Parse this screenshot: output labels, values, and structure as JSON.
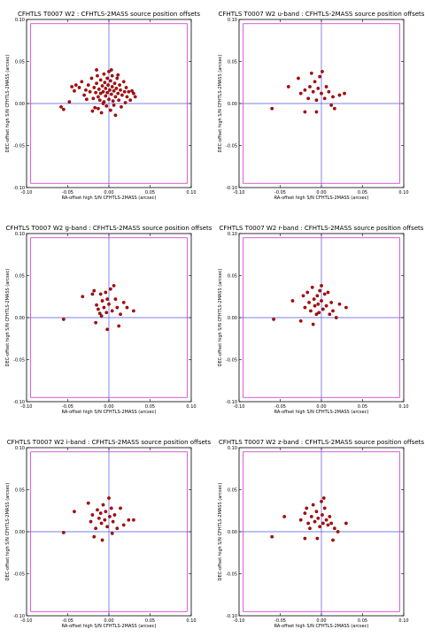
{
  "chart_data": [
    {
      "type": "scatter",
      "title": "CFHTLS T0007 W2 : CFHTLS-2MASS source position offsets",
      "xlabel": "RA-offset high S/N CFHTLS-2MASS (arcsec)",
      "ylabel": "DEC-offset high S/N CFHTLS-2MASS (arcsec)",
      "xlim": [
        -0.1,
        0.1
      ],
      "ylim": [
        -0.1,
        0.1
      ],
      "xticks": [
        "-0.10",
        "-0.05",
        "0.00",
        "0.05",
        "0.10"
      ],
      "yticks": [
        "-0.10",
        "-0.05",
        "0.00",
        "0.05",
        "0.10"
      ],
      "box": [
        -0.095,
        0.095,
        -0.095,
        0.095
      ],
      "colors": {
        "point": "#c00000",
        "edge": "#4a0000",
        "box": "#cc33cc",
        "crosshair": "#5555dd"
      },
      "points": [
        [
          -0.058,
          -0.004
        ],
        [
          -0.055,
          -0.007
        ],
        [
          -0.048,
          0.002
        ],
        [
          -0.045,
          0.02
        ],
        [
          -0.042,
          0.015
        ],
        [
          -0.04,
          0.022
        ],
        [
          -0.036,
          0.019
        ],
        [
          -0.033,
          0.026
        ],
        [
          -0.03,
          0.01
        ],
        [
          -0.028,
          0.016
        ],
        [
          -0.025,
          0.022
        ],
        [
          -0.023,
          0.014
        ],
        [
          -0.021,
          0.03
        ],
        [
          -0.019,
          0.006
        ],
        [
          -0.018,
          0.019
        ],
        [
          -0.017,
          -0.005
        ],
        [
          -0.016,
          0.013
        ],
        [
          -0.015,
          0.024
        ],
        [
          -0.014,
          0.033
        ],
        [
          -0.013,
          0.008
        ],
        [
          -0.012,
          0.017
        ],
        [
          -0.011,
          0.004
        ],
        [
          -0.01,
          0.028
        ],
        [
          -0.01,
          0.012
        ],
        [
          -0.009,
          -0.011
        ],
        [
          -0.008,
          0.021
        ],
        [
          -0.007,
          0.014
        ],
        [
          -0.006,
          0.035
        ],
        [
          -0.006,
          0.002
        ],
        [
          -0.005,
          0.025
        ],
        [
          -0.004,
          0.009
        ],
        [
          -0.004,
          0.018
        ],
        [
          -0.003,
          -0.003
        ],
        [
          -0.002,
          0.03
        ],
        [
          -0.002,
          0.013
        ],
        [
          -0.001,
          0.022
        ],
        [
          0.0,
          0.038
        ],
        [
          0.0,
          0.005
        ],
        [
          0.001,
          0.016
        ],
        [
          0.002,
          0.027
        ],
        [
          0.002,
          -0.008
        ],
        [
          0.003,
          0.011
        ],
        [
          0.004,
          0.02
        ],
        [
          0.004,
          0.033
        ],
        [
          0.005,
          0.003
        ],
        [
          0.006,
          0.015
        ],
        [
          0.007,
          0.024
        ],
        [
          0.008,
          0.008
        ],
        [
          0.008,
          -0.014
        ],
        [
          0.009,
          0.018
        ],
        [
          0.01,
          0.03
        ],
        [
          0.011,
          0.012
        ],
        [
          0.012,
          0.004
        ],
        [
          0.013,
          0.022
        ],
        [
          0.014,
          0.016
        ],
        [
          0.015,
          -0.004
        ],
        [
          0.016,
          0.01
        ],
        [
          0.018,
          0.026
        ],
        [
          0.019,
          0.014
        ],
        [
          0.02,
          0.001
        ],
        [
          0.021,
          0.019
        ],
        [
          0.022,
          0.008
        ],
        [
          0.024,
          0.014
        ],
        [
          0.026,
          0.004
        ],
        [
          0.028,
          0.015
        ],
        [
          0.03,
          0.012
        ],
        [
          0.032,
          0.008
        ],
        [
          -0.02,
          -0.009
        ],
        [
          -0.013,
          -0.006
        ],
        [
          0.003,
          0.04
        ],
        [
          -0.007,
          0.0
        ],
        [
          0.011,
          0.034
        ],
        [
          -0.027,
          0.005
        ],
        [
          0.006,
          -0.002
        ],
        [
          -0.015,
          0.04
        ]
      ]
    },
    {
      "type": "scatter",
      "title": "CFHTLS T0007 W2 u-band : CFHTLS-2MASS source position offsets",
      "xlabel": "RA-offset high S/N CFHTLS-2MASS (arcsec)",
      "ylabel": "DEC-offset high S/N CFHTLS-2MASS (arcsec)",
      "xlim": [
        -0.1,
        0.1
      ],
      "ylim": [
        -0.1,
        0.1
      ],
      "xticks": [
        "-0.10",
        "-0.05",
        "0.00",
        "0.05",
        "0.10"
      ],
      "yticks": [
        "-0.10",
        "-0.05",
        "0.00",
        "0.05",
        "0.10"
      ],
      "box": [
        -0.095,
        0.095,
        -0.095,
        0.095
      ],
      "colors": {
        "point": "#c00000",
        "edge": "#4a0000",
        "box": "#cc33cc",
        "crosshair": "#5555dd"
      },
      "points": [
        [
          -0.06,
          -0.006
        ],
        [
          -0.04,
          0.02
        ],
        [
          -0.025,
          0.012
        ],
        [
          -0.02,
          0.016
        ],
        [
          -0.016,
          0.006
        ],
        [
          -0.014,
          0.02
        ],
        [
          -0.012,
          0.036
        ],
        [
          -0.01,
          0.014
        ],
        [
          -0.008,
          0.026
        ],
        [
          -0.006,
          0.004
        ],
        [
          -0.004,
          0.018
        ],
        [
          -0.002,
          0.032
        ],
        [
          0.0,
          0.012
        ],
        [
          0.001,
          0.038
        ],
        [
          0.004,
          0.006
        ],
        [
          0.006,
          0.02
        ],
        [
          0.009,
          0.014
        ],
        [
          0.012,
          -0.002
        ],
        [
          0.014,
          0.008
        ],
        [
          0.016,
          -0.006
        ],
        [
          0.022,
          0.01
        ],
        [
          0.028,
          0.012
        ],
        [
          -0.02,
          -0.01
        ],
        [
          -0.006,
          -0.01
        ],
        [
          -0.028,
          0.03
        ]
      ]
    },
    {
      "type": "scatter",
      "title": "CFHTLS T0007 W2 g-band : CFHTLS-2MASS source position offsets",
      "xlabel": "RA-offset high S/N CFHTLS-2MASS (arcsec)",
      "ylabel": "DEC-offset high S/N CFHTLS-2MASS (arcsec)",
      "xlim": [
        -0.1,
        0.1
      ],
      "ylim": [
        -0.1,
        0.1
      ],
      "xticks": [
        "-0.10",
        "-0.05",
        "0.00",
        "0.05",
        "0.10"
      ],
      "yticks": [
        "-0.10",
        "-0.05",
        "0.00",
        "0.05",
        "0.10"
      ],
      "box": [
        -0.095,
        0.095,
        -0.095,
        0.095
      ],
      "colors": {
        "point": "#c00000",
        "edge": "#4a0000",
        "box": "#cc33cc",
        "crosshair": "#5555dd"
      },
      "points": [
        [
          -0.055,
          -0.002
        ],
        [
          -0.032,
          0.025
        ],
        [
          -0.02,
          0.028
        ],
        [
          -0.018,
          0.032
        ],
        [
          -0.015,
          0.015
        ],
        [
          -0.013,
          0.01
        ],
        [
          -0.011,
          0.005
        ],
        [
          -0.01,
          0.028
        ],
        [
          -0.008,
          0.02
        ],
        [
          -0.006,
          0.012
        ],
        [
          -0.004,
          0.03
        ],
        [
          -0.003,
          0.006
        ],
        [
          -0.002,
          0.022
        ],
        [
          0.0,
          0.016
        ],
        [
          0.002,
          0.034
        ],
        [
          0.004,
          0.008
        ],
        [
          0.006,
          0.038
        ],
        [
          0.008,
          0.022
        ],
        [
          0.01,
          0.012
        ],
        [
          0.014,
          0.004
        ],
        [
          0.018,
          0.018
        ],
        [
          0.022,
          0.012
        ],
        [
          0.03,
          0.008
        ],
        [
          -0.016,
          -0.006
        ],
        [
          -0.002,
          -0.014
        ],
        [
          0.012,
          -0.01
        ],
        [
          -0.009,
          0.002
        ]
      ]
    },
    {
      "type": "scatter",
      "title": "CFHTLS T0007 W2 r-band : CFHTLS-2MASS source position offsets",
      "xlabel": "RA-offset high S/N CFHTLS-2MASS (arcsec)",
      "ylabel": "DEC-offset high S/N CFHTLS-2MASS (arcsec)",
      "xlim": [
        -0.1,
        0.1
      ],
      "ylim": [
        -0.1,
        0.1
      ],
      "xticks": [
        "-0.10",
        "-0.05",
        "0.00",
        "0.05",
        "0.10"
      ],
      "yticks": [
        "-0.10",
        "-0.05",
        "0.00",
        "0.05",
        "0.10"
      ],
      "box": [
        -0.095,
        0.095,
        -0.095,
        0.095
      ],
      "colors": {
        "point": "#c00000",
        "edge": "#4a0000",
        "box": "#cc33cc",
        "crosshair": "#5555dd"
      },
      "points": [
        [
          -0.058,
          -0.002
        ],
        [
          -0.035,
          0.02
        ],
        [
          -0.022,
          0.026
        ],
        [
          -0.02,
          0.012
        ],
        [
          -0.017,
          0.03
        ],
        [
          -0.015,
          0.018
        ],
        [
          -0.013,
          0.008
        ],
        [
          -0.011,
          0.036
        ],
        [
          -0.009,
          0.022
        ],
        [
          -0.008,
          0.014
        ],
        [
          -0.006,
          0.004
        ],
        [
          -0.005,
          0.026
        ],
        [
          -0.004,
          0.016
        ],
        [
          -0.002,
          0.032
        ],
        [
          0.0,
          0.02
        ],
        [
          0.002,
          0.01
        ],
        [
          0.004,
          0.028
        ],
        [
          0.006,
          0.014
        ],
        [
          0.008,
          0.03
        ],
        [
          0.01,
          0.004
        ],
        [
          0.012,
          0.018
        ],
        [
          0.014,
          0.008
        ],
        [
          0.018,
          0.0
        ],
        [
          0.022,
          0.016
        ],
        [
          0.03,
          0.012
        ],
        [
          -0.01,
          -0.008
        ],
        [
          -0.025,
          -0.004
        ],
        [
          0.0,
          0.038
        ],
        [
          -0.003,
          0.006
        ]
      ]
    },
    {
      "type": "scatter",
      "title": "CFHTLS T0007 W2 i-band : CFHTLS-2MASS source position offsets",
      "xlabel": "RA-offset high S/N CFHTLS-2MASS (arcsec)",
      "ylabel": "DEC-offset high S/N CFHTLS-2MASS (arcsec)",
      "xlim": [
        -0.1,
        0.1
      ],
      "ylim": [
        -0.1,
        0.1
      ],
      "xticks": [
        "-0.10",
        "-0.05",
        "0.00",
        "0.05",
        "0.10"
      ],
      "yticks": [
        "-0.10",
        "-0.05",
        "0.00",
        "0.05",
        "0.10"
      ],
      "box": [
        -0.095,
        0.095,
        -0.095,
        0.095
      ],
      "colors": {
        "point": "#c00000",
        "edge": "#4a0000",
        "box": "#cc33cc",
        "crosshair": "#5555dd"
      },
      "points": [
        [
          -0.055,
          -0.001
        ],
        [
          -0.042,
          0.024
        ],
        [
          -0.025,
          0.034
        ],
        [
          -0.022,
          0.012
        ],
        [
          -0.02,
          0.02
        ],
        [
          -0.016,
          0.004
        ],
        [
          -0.014,
          0.026
        ],
        [
          -0.012,
          0.016
        ],
        [
          -0.01,
          0.022
        ],
        [
          -0.009,
          0.01
        ],
        [
          -0.007,
          0.032
        ],
        [
          -0.005,
          0.014
        ],
        [
          -0.004,
          0.024
        ],
        [
          -0.002,
          0.006
        ],
        [
          0.0,
          0.04
        ],
        [
          0.001,
          0.018
        ],
        [
          0.003,
          0.028
        ],
        [
          0.005,
          0.012
        ],
        [
          0.007,
          0.02
        ],
        [
          0.01,
          0.004
        ],
        [
          0.014,
          0.028
        ],
        [
          0.018,
          0.008
        ],
        [
          0.024,
          0.014
        ],
        [
          0.03,
          0.014
        ],
        [
          -0.008,
          -0.01
        ],
        [
          -0.018,
          -0.006
        ],
        [
          0.004,
          -0.002
        ]
      ]
    },
    {
      "type": "scatter",
      "title": "CFHTLS T0007 W2 z-band : CFHTLS-2MASS source position offsets",
      "xlabel": "RA-offset high S/N CFHTLS-2MASS (arcsec)",
      "ylabel": "DEC-offset high S/N CFHTLS-2MASS (arcsec)",
      "xlim": [
        -0.1,
        0.1
      ],
      "ylim": [
        -0.1,
        0.1
      ],
      "xticks": [
        "-0.10",
        "-0.05",
        "0.00",
        "0.05",
        "0.10"
      ],
      "yticks": [
        "-0.10",
        "-0.05",
        "0.00",
        "0.05",
        "0.10"
      ],
      "box": [
        -0.095,
        0.095,
        -0.095,
        0.095
      ],
      "colors": {
        "point": "#c00000",
        "edge": "#4a0000",
        "box": "#cc33cc",
        "crosshair": "#5555dd"
      },
      "points": [
        [
          -0.06,
          -0.006
        ],
        [
          -0.045,
          0.018
        ],
        [
          -0.025,
          0.014
        ],
        [
          -0.02,
          0.022
        ],
        [
          -0.018,
          0.028
        ],
        [
          -0.016,
          0.01
        ],
        [
          -0.014,
          0.004
        ],
        [
          -0.012,
          0.018
        ],
        [
          -0.01,
          0.032
        ],
        [
          -0.008,
          0.012
        ],
        [
          -0.006,
          0.024
        ],
        [
          -0.004,
          0.016
        ],
        [
          -0.002,
          0.006
        ],
        [
          0.0,
          0.036
        ],
        [
          0.001,
          0.02
        ],
        [
          0.002,
          0.01
        ],
        [
          0.004,
          0.028
        ],
        [
          0.006,
          0.014
        ],
        [
          0.008,
          0.008
        ],
        [
          0.01,
          0.018
        ],
        [
          0.012,
          0.01
        ],
        [
          0.016,
          0.004
        ],
        [
          0.02,
          0.0
        ],
        [
          0.03,
          0.01
        ],
        [
          -0.02,
          -0.008
        ],
        [
          -0.005,
          -0.008
        ],
        [
          0.014,
          -0.01
        ],
        [
          0.003,
          0.04
        ]
      ]
    }
  ]
}
